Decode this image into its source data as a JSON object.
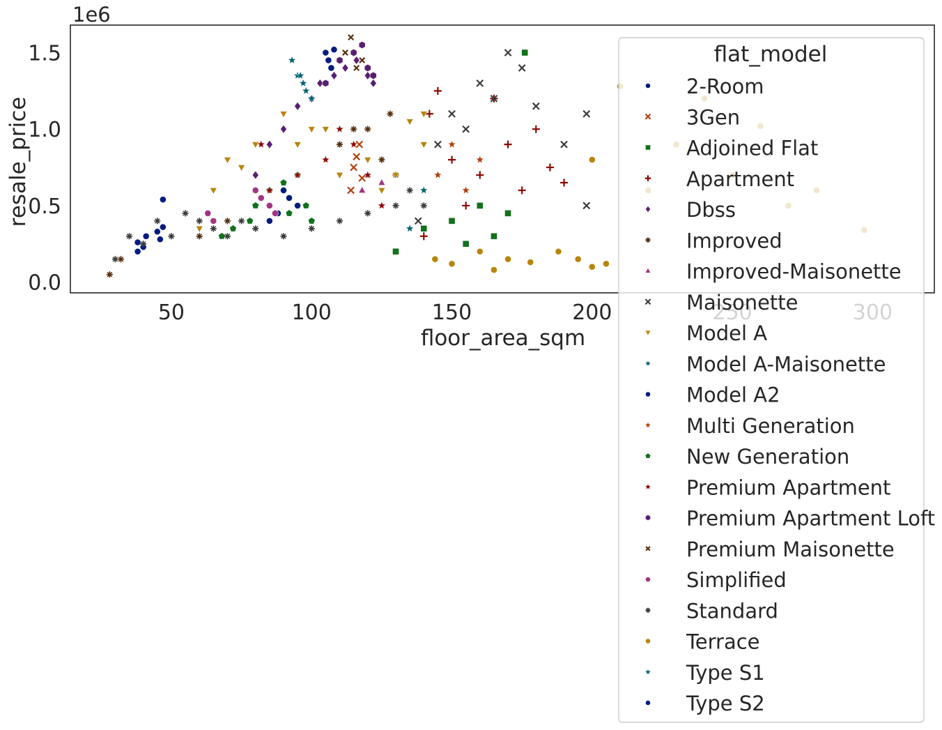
{
  "chart_data": {
    "type": "scatter",
    "xlabel": "floor_area_sqm",
    "ylabel": "resale_price",
    "y_offset_label": "1e6",
    "xlim": [
      14,
      322
    ],
    "ylim": [
      -70000,
      1680000
    ],
    "x_ticks": [
      {
        "value": 50,
        "label": "50"
      },
      {
        "value": 100,
        "label": "100"
      },
      {
        "value": 150,
        "label": "150"
      },
      {
        "value": 200,
        "label": "200"
      },
      {
        "value": 250,
        "label": "250"
      },
      {
        "value": 300,
        "label": "300"
      }
    ],
    "y_ticks": [
      {
        "value": 0,
        "label": "0.0"
      },
      {
        "value": 500000,
        "label": "0.5"
      },
      {
        "value": 1000000,
        "label": "1.0"
      },
      {
        "value": 1500000,
        "label": "1.5"
      }
    ],
    "grid": false,
    "legend_title": "flat_model",
    "legend_position": "right, overflowing below the plot area",
    "series": [
      {
        "name": "2-Room",
        "color": "#001c7f",
        "marker": "circle",
        "points": [
          [
            38,
            200000
          ],
          [
            38,
            260000
          ],
          [
            40,
            230000
          ],
          [
            41,
            300000
          ],
          [
            45,
            330000
          ],
          [
            46,
            280000
          ],
          [
            47,
            360000
          ],
          [
            47,
            540000
          ]
        ]
      },
      {
        "name": "3Gen",
        "color": "#b1400d",
        "marker": "x",
        "points": [
          [
            114,
            600000
          ],
          [
            115,
            750000
          ],
          [
            116,
            820000
          ],
          [
            117,
            900000
          ],
          [
            118,
            680000
          ]
        ]
      },
      {
        "name": "Adjoined Flat",
        "color": "#12711c",
        "marker": "square",
        "points": [
          [
            130,
            200000
          ],
          [
            140,
            350000
          ],
          [
            150,
            400000
          ],
          [
            155,
            250000
          ],
          [
            160,
            500000
          ],
          [
            165,
            300000
          ],
          [
            170,
            450000
          ],
          [
            176,
            1500000
          ]
        ]
      },
      {
        "name": "Apartment",
        "color": "#8c0800",
        "marker": "plus",
        "points": [
          [
            140,
            300000
          ],
          [
            142,
            1100000
          ],
          [
            145,
            1250000
          ],
          [
            150,
            800000
          ],
          [
            155,
            500000
          ],
          [
            160,
            700000
          ],
          [
            165,
            1200000
          ],
          [
            170,
            900000
          ],
          [
            175,
            600000
          ],
          [
            180,
            1000000
          ],
          [
            185,
            750000
          ],
          [
            190,
            650000
          ]
        ]
      },
      {
        "name": "Dbss",
        "color": "#591e71",
        "marker": "diamond",
        "points": [
          [
            80,
            700000
          ],
          [
            85,
            900000
          ],
          [
            90,
            1000000
          ],
          [
            95,
            1150000
          ],
          [
            100,
            1200000
          ],
          [
            103,
            1300000
          ],
          [
            108,
            1350000
          ],
          [
            112,
            1400000
          ],
          [
            116,
            1450000
          ],
          [
            120,
            1350000
          ],
          [
            122,
            1300000
          ]
        ]
      },
      {
        "name": "Improved",
        "color": "#592f0d",
        "marker": "plus-star",
        "points": [
          [
            28,
            50000
          ],
          [
            32,
            150000
          ],
          [
            60,
            300000
          ],
          [
            70,
            400000
          ],
          [
            110,
            900000
          ],
          [
            115,
            1000000
          ],
          [
            120,
            1000000
          ],
          [
            125,
            800000
          ],
          [
            130,
            700000
          ],
          [
            128,
            1100000
          ]
        ]
      },
      {
        "name": "Improved-Maisonette",
        "color": "#a23582",
        "marker": "triangle-up",
        "points": [
          [
            118,
            600000
          ],
          [
            120,
            700000
          ],
          [
            125,
            650000
          ]
        ]
      },
      {
        "name": "Maisonette",
        "color": "#3c3c3c",
        "marker": "x",
        "points": [
          [
            138,
            400000
          ],
          [
            145,
            900000
          ],
          [
            150,
            1100000
          ],
          [
            155,
            1000000
          ],
          [
            160,
            1300000
          ],
          [
            165,
            1200000
          ],
          [
            170,
            1500000
          ],
          [
            175,
            1400000
          ],
          [
            180,
            1150000
          ],
          [
            190,
            900000
          ],
          [
            198,
            1100000
          ],
          [
            198,
            500000
          ]
        ]
      },
      {
        "name": "Model A",
        "color": "#b8850a",
        "marker": "triangle-down",
        "points": [
          [
            60,
            350000
          ],
          [
            65,
            600000
          ],
          [
            70,
            800000
          ],
          [
            75,
            750000
          ],
          [
            80,
            900000
          ],
          [
            90,
            1100000
          ],
          [
            95,
            900000
          ],
          [
            100,
            1000000
          ],
          [
            105,
            1000000
          ],
          [
            110,
            700000
          ],
          [
            120,
            800000
          ],
          [
            125,
            600000
          ],
          [
            130,
            700000
          ],
          [
            135,
            1050000
          ],
          [
            140,
            900000
          ],
          [
            140,
            1100000
          ]
        ]
      },
      {
        "name": "Model A-Maisonette",
        "color": "#006374",
        "marker": "star",
        "points": [
          [
            93,
            1450000
          ],
          [
            95,
            1350000
          ],
          [
            97,
            1300000
          ],
          [
            100,
            1200000
          ],
          [
            125,
            500000
          ],
          [
            135,
            350000
          ],
          [
            140,
            600000
          ]
        ]
      },
      {
        "name": "Model A2",
        "color": "#001c7f",
        "marker": "circle",
        "points": [
          [
            85,
            400000
          ],
          [
            88,
            450000
          ],
          [
            90,
            600000
          ],
          [
            92,
            550000
          ],
          [
            95,
            500000
          ]
        ]
      },
      {
        "name": "Multi Generation",
        "color": "#b1400d",
        "marker": "star",
        "points": [
          [
            145,
            700000
          ],
          [
            150,
            900000
          ],
          [
            155,
            600000
          ],
          [
            160,
            800000
          ]
        ]
      },
      {
        "name": "New Generation",
        "color": "#12711c",
        "marker": "pentagon",
        "points": [
          [
            68,
            300000
          ],
          [
            72,
            350000
          ],
          [
            78,
            400000
          ],
          [
            80,
            500000
          ],
          [
            85,
            600000
          ],
          [
            90,
            650000
          ],
          [
            92,
            450000
          ],
          [
            95,
            700000
          ],
          [
            98,
            500000
          ],
          [
            100,
            400000
          ]
        ]
      },
      {
        "name": "Premium Apartment",
        "color": "#8c0800",
        "marker": "star",
        "points": [
          [
            82,
            900000
          ],
          [
            85,
            600000
          ],
          [
            95,
            700000
          ],
          [
            105,
            800000
          ],
          [
            110,
            1000000
          ],
          [
            115,
            900000
          ],
          [
            120,
            700000
          ],
          [
            125,
            500000
          ]
        ]
      },
      {
        "name": "Premium Apartment Loft",
        "color": "#591e71",
        "marker": "hexagon",
        "points": [
          [
            105,
            1300000
          ],
          [
            110,
            1450000
          ],
          [
            115,
            1500000
          ],
          [
            118,
            1550000
          ],
          [
            120,
            1400000
          ],
          [
            122,
            1350000
          ]
        ]
      },
      {
        "name": "Premium Maisonette",
        "color": "#592f0d",
        "marker": "x-small",
        "points": [
          [
            112,
            1500000
          ],
          [
            114,
            1600000
          ],
          [
            116,
            1400000
          ],
          [
            118,
            1450000
          ]
        ]
      },
      {
        "name": "Simplified",
        "color": "#a23582",
        "marker": "circle",
        "points": [
          [
            63,
            450000
          ],
          [
            65,
            400000
          ],
          [
            80,
            600000
          ],
          [
            82,
            550000
          ],
          [
            85,
            500000
          ],
          [
            87,
            450000
          ]
        ]
      },
      {
        "name": "Standard",
        "color": "#3c3c3c",
        "marker": "plus-star",
        "points": [
          [
            30,
            150000
          ],
          [
            35,
            300000
          ],
          [
            40,
            250000
          ],
          [
            45,
            400000
          ],
          [
            50,
            300000
          ],
          [
            55,
            450000
          ],
          [
            60,
            400000
          ],
          [
            65,
            350000
          ],
          [
            70,
            300000
          ],
          [
            75,
            400000
          ],
          [
            80,
            350000
          ],
          [
            90,
            300000
          ],
          [
            100,
            350000
          ],
          [
            110,
            400000
          ],
          [
            120,
            450000
          ],
          [
            130,
            500000
          ],
          [
            135,
            600000
          ],
          [
            140,
            500000
          ]
        ]
      },
      {
        "name": "Terrace",
        "color": "#b8850a",
        "marker": "circle",
        "points": [
          [
            144,
            150000
          ],
          [
            150,
            120000
          ],
          [
            160,
            200000
          ],
          [
            165,
            80000
          ],
          [
            170,
            150000
          ],
          [
            178,
            130000
          ],
          [
            188,
            200000
          ],
          [
            195,
            150000
          ],
          [
            200,
            100000
          ],
          [
            205,
            120000
          ],
          [
            210,
            1280000
          ],
          [
            200,
            800000
          ],
          [
            220,
            600000
          ],
          [
            230,
            900000
          ],
          [
            240,
            1200000
          ],
          [
            250,
            700000
          ],
          [
            260,
            1020000
          ],
          [
            270,
            500000
          ],
          [
            280,
            600000
          ],
          [
            297,
            340000
          ]
        ]
      },
      {
        "name": "Type S1",
        "color": "#006374",
        "marker": "star",
        "points": [
          [
            96,
            1350000
          ],
          [
            97,
            1300000
          ],
          [
            98,
            1250000
          ]
        ]
      },
      {
        "name": "Type S2",
        "color": "#001c7f",
        "marker": "circle",
        "points": [
          [
            105,
            1500000
          ],
          [
            106,
            1450000
          ],
          [
            107,
            1400000
          ],
          [
            108,
            1520000
          ]
        ]
      }
    ]
  }
}
